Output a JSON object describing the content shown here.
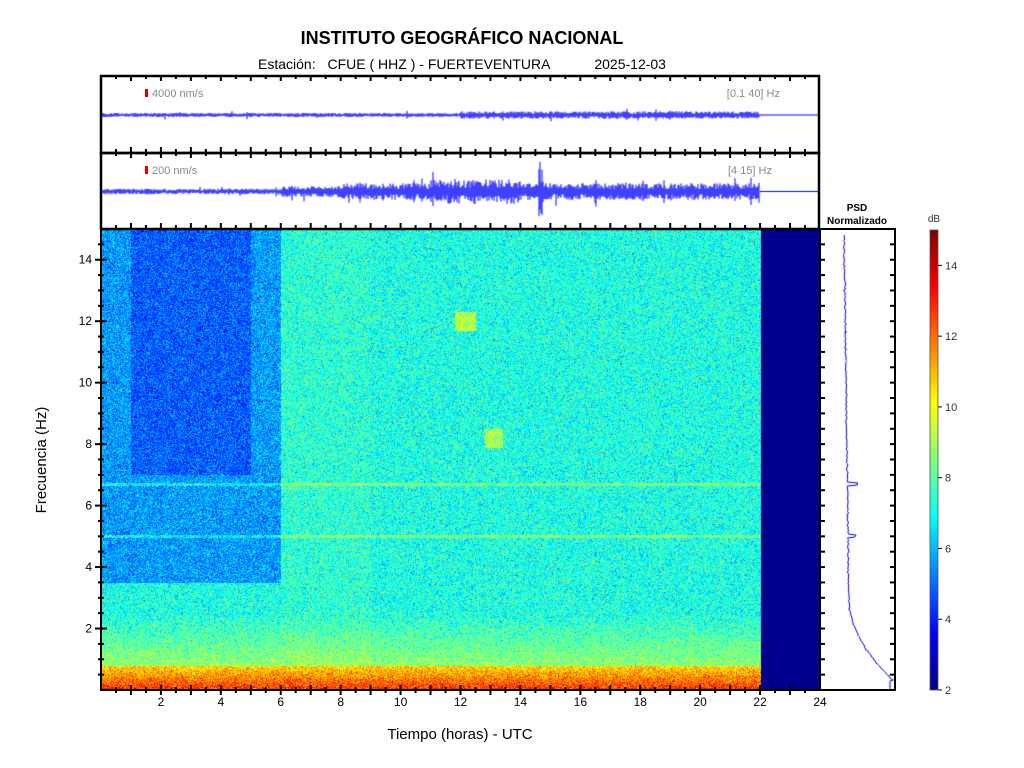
{
  "header": {
    "title": "INSTITUTO GEOGRÁFICO NACIONAL",
    "station_label": "Estación:",
    "station": "CFUE ( HHZ ) - FUERTEVENTURA",
    "date": "2025-12-03"
  },
  "traces": [
    {
      "scale": "4000 nm/s",
      "band": "[0.1 40] Hz",
      "color": "#0000ff"
    },
    {
      "scale": "200 nm/s",
      "band": "[4 15] Hz",
      "color": "#0000ff"
    }
  ],
  "psd": {
    "title_line1": "PSD",
    "title_line2": "Normalizado"
  },
  "colorbar": {
    "unit": "dB",
    "range": [
      2,
      15
    ],
    "ticks": [
      2,
      4,
      6,
      8,
      10,
      12,
      14
    ]
  },
  "chart_data": {
    "type": "heatmap",
    "title": "INSTITUTO GEOGRÁFICO NACIONAL",
    "xlabel": "Tiempo (horas) - UTC",
    "ylabel": "Frecuencia  (Hz)",
    "xlim": [
      0,
      24
    ],
    "ylim": [
      0,
      15
    ],
    "xticks": [
      2,
      4,
      6,
      8,
      10,
      12,
      14,
      16,
      18,
      20,
      22,
      24
    ],
    "yticks": [
      2,
      4,
      6,
      8,
      10,
      12,
      14
    ],
    "data_end_hour": 22,
    "colormap": "jet",
    "color_range_db": [
      2,
      15
    ]
  }
}
